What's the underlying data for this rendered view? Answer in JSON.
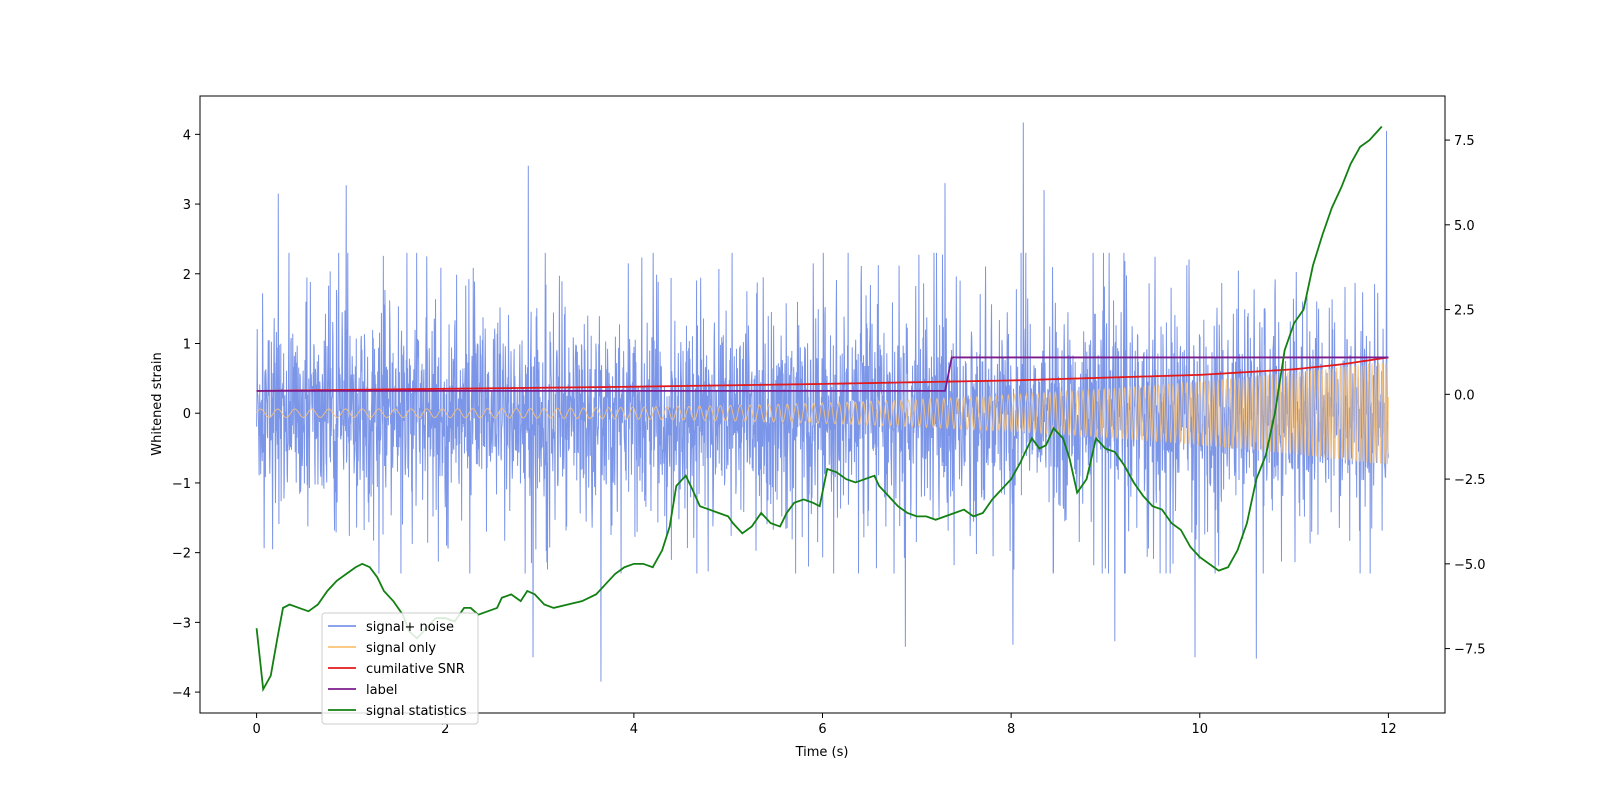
{
  "chart_data": {
    "type": "line",
    "xlabel": "Time (s)",
    "ylabel": "Whitened strain",
    "y2label": "",
    "xlim": [
      -0.6,
      12.6
    ],
    "ylim": [
      -4.3,
      4.55
    ],
    "y2lim": [
      -9.4,
      8.8
    ],
    "xticks": [
      0,
      2,
      4,
      6,
      8,
      10,
      12
    ],
    "xtick_labels": [
      "0",
      "2",
      "4",
      "6",
      "8",
      "10",
      "12"
    ],
    "yticks": [
      -4,
      -3,
      -2,
      -1,
      0,
      1,
      2,
      3,
      4
    ],
    "ytick_labels": [
      "−4",
      "−3",
      "−2",
      "−1",
      "0",
      "1",
      "2",
      "3",
      "4"
    ],
    "y2ticks": [
      -7.5,
      -5.0,
      -2.5,
      0.0,
      2.5,
      5.0,
      7.5
    ],
    "y2tick_labels": [
      "−7.5",
      "−5.0",
      "−2.5",
      "0.0",
      "2.5",
      "5.0",
      "7.5"
    ],
    "grid": false,
    "legend": {
      "placement": "lower-left",
      "entries": [
        "signal+ noise",
        "signal only",
        "cumilative SNR",
        "label",
        "signal statistics"
      ]
    },
    "series": [
      {
        "name": "signal+ noise",
        "axis": "left",
        "color": "#7b95e8",
        "x_range": [
          0,
          12
        ],
        "center": 0.0,
        "upper_typical": 1.9,
        "lower_typical": -1.9,
        "peaks": [
          {
            "x": 0.23,
            "y": 3.15
          },
          {
            "x": 0.95,
            "y": 3.27
          },
          {
            "x": 2.88,
            "y": 3.55
          },
          {
            "x": 7.3,
            "y": 3.3
          },
          {
            "x": 8.13,
            "y": 4.17
          },
          {
            "x": 8.35,
            "y": 3.2
          },
          {
            "x": 11.98,
            "y": 4.05
          },
          {
            "x": 10.6,
            "y": -3.52
          },
          {
            "x": 3.65,
            "y": -3.85
          },
          {
            "x": 2.93,
            "y": -3.5
          },
          {
            "x": 6.88,
            "y": -3.35
          },
          {
            "x": 9.95,
            "y": -3.5
          },
          {
            "x": 8.02,
            "y": -3.32
          },
          {
            "x": 9.1,
            "y": -3.27
          }
        ]
      },
      {
        "name": "signal only",
        "axis": "left",
        "color": "#fdc374",
        "x_range": [
          0,
          12
        ],
        "amplitude_start": 0.06,
        "amplitude_end": 0.75,
        "cycles_start": 5.5,
        "cycles_end": 28
      },
      {
        "name": "cumilative SNR",
        "axis": "left",
        "color": "#e31a1c",
        "x": [
          0,
          2,
          4,
          6,
          8,
          10,
          11,
          11.5,
          12
        ],
        "values": [
          0.32,
          0.35,
          0.38,
          0.42,
          0.47,
          0.55,
          0.63,
          0.7,
          0.8
        ]
      },
      {
        "name": "label",
        "axis": "left",
        "color": "#7b1b8c",
        "x": [
          0,
          7.3,
          7.37,
          12
        ],
        "values": [
          0.32,
          0.32,
          0.8,
          0.8
        ]
      },
      {
        "name": "signal statistics",
        "axis": "right",
        "color": "#128012",
        "x": [
          0,
          0.07,
          0.15,
          0.22,
          0.28,
          0.35,
          0.45,
          0.55,
          0.65,
          0.75,
          0.85,
          0.95,
          1.05,
          1.12,
          1.2,
          1.28,
          1.35,
          1.45,
          1.55,
          1.62,
          1.7,
          1.8,
          1.9,
          2.0,
          2.1,
          2.2,
          2.27,
          2.35,
          2.45,
          2.55,
          2.6,
          2.7,
          2.8,
          2.87,
          2.95,
          3.05,
          3.15,
          3.3,
          3.45,
          3.6,
          3.7,
          3.8,
          3.9,
          4.0,
          4.1,
          4.2,
          4.3,
          4.38,
          4.45,
          4.55,
          4.62,
          4.7,
          4.8,
          4.9,
          5.0,
          5.05,
          5.15,
          5.25,
          5.35,
          5.45,
          5.55,
          5.62,
          5.7,
          5.8,
          5.9,
          5.97,
          6.05,
          6.15,
          6.25,
          6.35,
          6.45,
          6.55,
          6.6,
          6.7,
          6.8,
          6.9,
          7.0,
          7.1,
          7.2,
          7.3,
          7.4,
          7.5,
          7.6,
          7.7,
          7.8,
          7.9,
          8.0,
          8.1,
          8.15,
          8.22,
          8.3,
          8.37,
          8.45,
          8.55,
          8.62,
          8.7,
          8.8,
          8.9,
          9.0,
          9.1,
          9.2,
          9.3,
          9.4,
          9.5,
          9.6,
          9.7,
          9.8,
          9.9,
          10.0,
          10.1,
          10.2,
          10.3,
          10.4,
          10.5,
          10.6,
          10.7,
          10.8,
          10.9,
          11.0,
          11.1,
          11.2,
          11.3,
          11.4,
          11.5,
          11.6,
          11.7,
          11.8,
          11.93
        ],
        "values": [
          -6.9,
          -8.7,
          -8.3,
          -7.2,
          -6.3,
          -6.2,
          -6.3,
          -6.4,
          -6.2,
          -5.8,
          -5.5,
          -5.3,
          -5.1,
          -5.0,
          -5.1,
          -5.4,
          -5.8,
          -6.1,
          -6.5,
          -7.0,
          -7.2,
          -6.9,
          -6.6,
          -6.6,
          -6.7,
          -6.3,
          -6.3,
          -6.5,
          -6.4,
          -6.3,
          -6.0,
          -5.9,
          -6.1,
          -5.8,
          -5.9,
          -6.2,
          -6.3,
          -6.2,
          -6.1,
          -5.9,
          -5.6,
          -5.3,
          -5.1,
          -5.0,
          -5.0,
          -5.1,
          -4.6,
          -3.9,
          -2.7,
          -2.4,
          -2.8,
          -3.3,
          -3.4,
          -3.5,
          -3.6,
          -3.8,
          -4.1,
          -3.9,
          -3.5,
          -3.8,
          -3.9,
          -3.5,
          -3.2,
          -3.1,
          -3.2,
          -3.3,
          -2.2,
          -2.3,
          -2.5,
          -2.6,
          -2.5,
          -2.4,
          -2.7,
          -3.0,
          -3.3,
          -3.5,
          -3.6,
          -3.6,
          -3.7,
          -3.6,
          -3.5,
          -3.4,
          -3.6,
          -3.5,
          -3.1,
          -2.8,
          -2.5,
          -2.0,
          -1.7,
          -1.3,
          -1.6,
          -1.5,
          -1.0,
          -1.3,
          -1.9,
          -2.9,
          -2.5,
          -1.3,
          -1.6,
          -1.7,
          -2.1,
          -2.6,
          -3.0,
          -3.3,
          -3.4,
          -3.8,
          -4.0,
          -4.5,
          -4.8,
          -5.0,
          -5.2,
          -5.1,
          -4.6,
          -3.8,
          -2.5,
          -1.8,
          -0.5,
          1.3,
          2.1,
          2.5,
          3.8,
          4.7,
          5.5,
          6.1,
          6.8,
          7.3,
          7.5,
          7.9
        ]
      }
    ]
  }
}
